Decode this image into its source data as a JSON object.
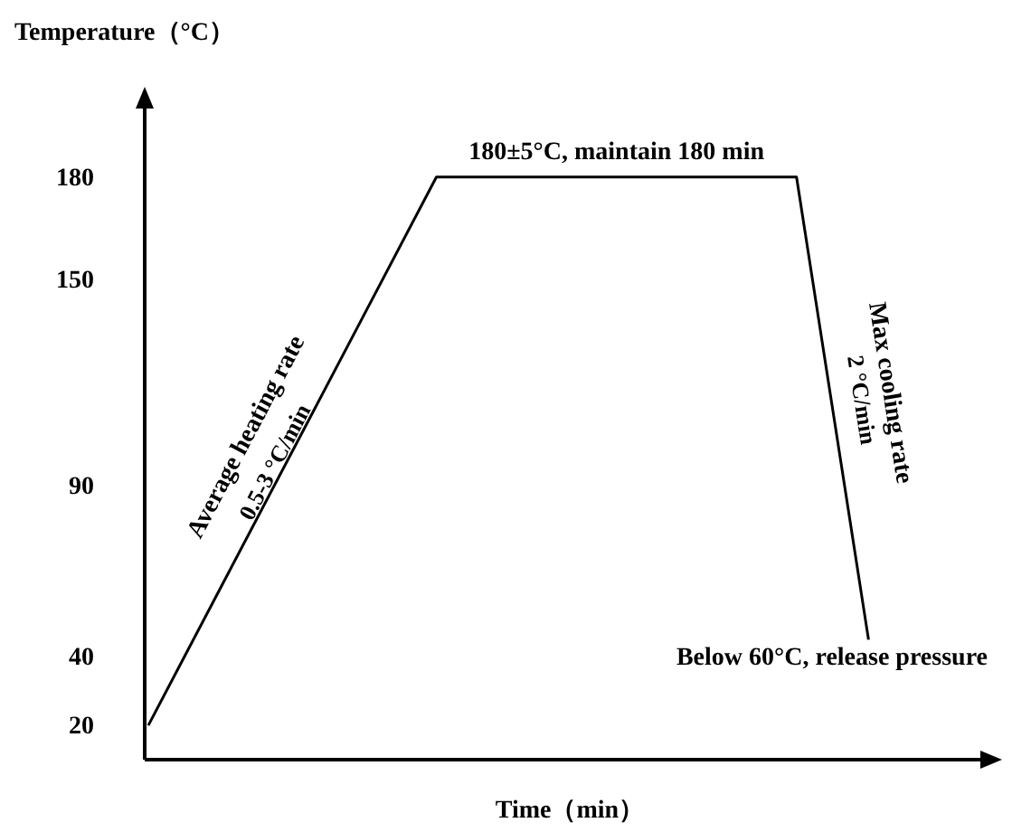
{
  "chart_data": {
    "type": "line",
    "xlabel": "Time（min）",
    "ylabel": "Temperature（°C）",
    "categories": [
      null,
      null,
      null,
      null,
      null,
      null,
      null,
      null,
      null,
      null,
      null,
      null
    ],
    "series": [
      {
        "color": "#000000",
        "values": [
          20,
          60,
          100,
          140,
          180,
          180,
          180,
          180,
          180,
          180,
          45,
          null
        ]
      }
    ],
    "ylim": [
      10,
      200
    ],
    "yticks": [
      20,
      40,
      90,
      150,
      180
    ],
    "grid": false,
    "marker": "none",
    "line_style": "solid",
    "tick_labels": "y",
    "annotations": [
      "180±5°C, maintain 180 min",
      "Average heating rate",
      "0.5-3 °C/min",
      "Max cooling rate",
      "2 °C/min",
      "Below 60°C, release pressure"
    ]
  }
}
